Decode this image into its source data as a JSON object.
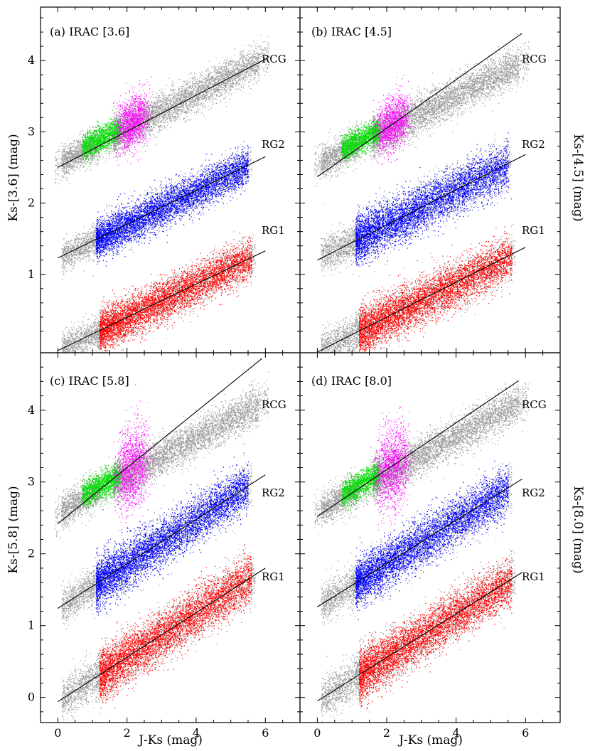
{
  "chart_data": [
    {
      "type": "scatter",
      "panel": "a",
      "title": "(a) IRAC [3.6]",
      "xlabel": "",
      "ylabel": "Ks-[3.6] (mag)",
      "xlim": [
        -0.5,
        7.0
      ],
      "ylim": [
        -0.1,
        4.75
      ],
      "xticks": [
        0,
        2,
        4,
        6
      ],
      "yticks": [
        1,
        2,
        3,
        4
      ],
      "ytick_labels": [
        "1",
        "2",
        "3",
        "4"
      ],
      "series": [
        {
          "name": "RCG",
          "color": "#ff00ff",
          "line": {
            "x": [
              0.0,
              6.0
            ],
            "y": [
              2.5,
              4.02
            ]
          },
          "cloud": {
            "x_range": [
              0.0,
              6.0
            ],
            "y_offset_at_0": 2.55,
            "slope": 0.25,
            "spread": 0.12
          }
        },
        {
          "name": "RG2",
          "color": "#0000ff",
          "line": {
            "x": [
              0.0,
              6.0
            ],
            "y": [
              1.23,
              2.65
            ]
          },
          "cloud": {
            "x_range": [
              1.1,
              5.5
            ],
            "y_offset_at_0": 1.23,
            "slope": 0.235,
            "spread": 0.13
          }
        },
        {
          "name": "RG1",
          "color": "#ff0000",
          "line": {
            "x": [
              0.0,
              6.0
            ],
            "y": [
              -0.07,
              1.33
            ]
          },
          "cloud": {
            "x_range": [
              1.2,
              5.6
            ],
            "y_offset_at_0": -0.07,
            "slope": 0.233,
            "spread": 0.14
          }
        }
      ],
      "clump": {
        "green_x": [
          0.7,
          1.8
        ],
        "magenta_x": [
          1.8,
          2.5
        ]
      },
      "labels": {
        "rcg": "RCG",
        "rg2": "RG2",
        "rg1": "RG1"
      }
    },
    {
      "type": "scatter",
      "panel": "b",
      "title": "(b) IRAC [4.5]",
      "xlabel": "",
      "ylabel": "Ks-[4.5] (mag)",
      "xlim": [
        -0.5,
        7.0
      ],
      "ylim": [
        -0.1,
        4.75
      ],
      "xticks": [
        0,
        2,
        4,
        6
      ],
      "yticks": [
        1,
        2,
        3,
        4
      ],
      "series": [
        {
          "name": "RCG",
          "color": "#ff00ff",
          "line": {
            "x": [
              0.0,
              5.9
            ],
            "y": [
              2.37,
              4.38
            ]
          },
          "cloud": {
            "x_range": [
              0.0,
              6.0
            ],
            "y_offset_at_0": 2.55,
            "slope": 0.24,
            "spread": 0.13
          }
        },
        {
          "name": "RG2",
          "color": "#0000ff",
          "line": {
            "x": [
              0.0,
              6.0
            ],
            "y": [
              1.2,
              2.68
            ]
          },
          "cloud": {
            "x_range": [
              1.1,
              5.5
            ],
            "y_offset_at_0": 1.22,
            "slope": 0.24,
            "spread": 0.16
          }
        },
        {
          "name": "RG1",
          "color": "#ff0000",
          "line": {
            "x": [
              0.0,
              6.0
            ],
            "y": [
              -0.09,
              1.38
            ]
          },
          "cloud": {
            "x_range": [
              1.2,
              5.6
            ],
            "y_offset_at_0": -0.09,
            "slope": 0.24,
            "spread": 0.16
          }
        }
      ],
      "clump": {
        "green_x": [
          0.7,
          1.8
        ],
        "magenta_x": [
          1.8,
          2.5
        ]
      },
      "labels": {
        "rcg": "RCG",
        "rg2": "RG2",
        "rg1": "RG1"
      }
    },
    {
      "type": "scatter",
      "panel": "c",
      "title": "(c) IRAC [5.8]",
      "xlabel": "J-Ks (mag)",
      "ylabel": "Ks-[5.8] (mag)",
      "xlim": [
        -0.5,
        7.0
      ],
      "ylim": [
        -0.35,
        4.8
      ],
      "xticks": [
        0,
        2,
        4,
        6
      ],
      "yticks": [
        0,
        1,
        2,
        3,
        4
      ],
      "series": [
        {
          "name": "RCG",
          "color": "#ff00ff",
          "line": {
            "x": [
              0.0,
              5.9
            ],
            "y": [
              2.42,
              4.72
            ]
          },
          "cloud": {
            "x_range": [
              0.0,
              6.0
            ],
            "y_offset_at_0": 2.58,
            "slope": 0.26,
            "spread": 0.13
          }
        },
        {
          "name": "RG2",
          "color": "#0000ff",
          "line": {
            "x": [
              0.0,
              6.0
            ],
            "y": [
              1.24,
              3.1
            ]
          },
          "cloud": {
            "x_range": [
              1.1,
              5.5
            ],
            "y_offset_at_0": 1.24,
            "slope": 0.31,
            "spread": 0.16
          }
        },
        {
          "name": "RG1",
          "color": "#ff0000",
          "line": {
            "x": [
              0.0,
              6.0
            ],
            "y": [
              -0.06,
              1.8
            ]
          },
          "cloud": {
            "x_range": [
              1.2,
              5.6
            ],
            "y_offset_at_0": -0.06,
            "slope": 0.31,
            "spread": 0.17
          }
        }
      ],
      "clump": {
        "green_x": [
          0.7,
          1.8
        ],
        "magenta_x": [
          1.8,
          2.5
        ]
      },
      "labels": {
        "rcg": "RCG",
        "rg2": "RG2",
        "rg1": "RG1"
      }
    },
    {
      "type": "scatter",
      "panel": "d",
      "title": "(d) IRAC [8.0]",
      "xlabel": "J-Ks (mag)",
      "ylabel": "Ks-[8.0] (mag)",
      "xlim": [
        -0.5,
        7.0
      ],
      "ylim": [
        -0.35,
        4.8
      ],
      "xticks": [
        0,
        2,
        4,
        6
      ],
      "yticks": [
        0,
        1,
        2,
        3,
        4
      ],
      "series": [
        {
          "name": "RCG",
          "color": "#ff00ff",
          "line": {
            "x": [
              0.0,
              5.8
            ],
            "y": [
              2.52,
              4.41
            ]
          },
          "cloud": {
            "x_range": [
              0.0,
              6.0
            ],
            "y_offset_at_0": 2.6,
            "slope": 0.26,
            "spread": 0.13
          }
        },
        {
          "name": "RG2",
          "color": "#0000ff",
          "line": {
            "x": [
              0.0,
              5.9
            ],
            "y": [
              1.26,
              3.04
            ]
          },
          "cloud": {
            "x_range": [
              1.1,
              5.5
            ],
            "y_offset_at_0": 1.26,
            "slope": 0.3,
            "spread": 0.16
          }
        },
        {
          "name": "RG1",
          "color": "#ff0000",
          "line": {
            "x": [
              0.0,
              5.9
            ],
            "y": [
              -0.05,
              1.74
            ]
          },
          "cloud": {
            "x_range": [
              1.2,
              5.6
            ],
            "y_offset_at_0": -0.05,
            "slope": 0.3,
            "spread": 0.17
          }
        }
      ],
      "clump": {
        "green_x": [
          0.7,
          1.8
        ],
        "magenta_x": [
          1.8,
          2.5
        ]
      },
      "labels": {
        "rcg": "RCG",
        "rg2": "RG2",
        "rg1": "RG1"
      }
    }
  ],
  "colors": {
    "rcg_magenta": "#ff00ff",
    "rcg_green": "#00dd00",
    "rg2_blue": "#0000ff",
    "rg1_red": "#ff0000",
    "background_gray": "#9a9a9a",
    "line": "#000000"
  }
}
